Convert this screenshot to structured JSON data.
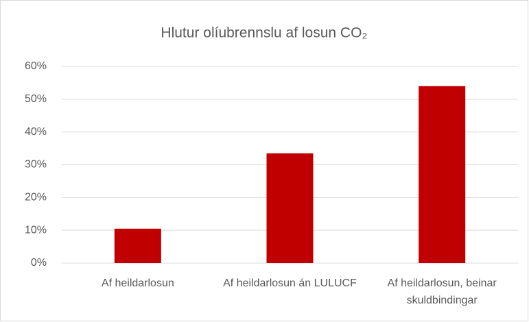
{
  "chart_data": {
    "type": "bar",
    "title": "Hlutur olíubrennslu af losun CO₂",
    "categories": [
      "Af heildarlosun",
      "Af heildarlosun án LULUCF",
      "Af heildarlosun, beinar skuldbindingar"
    ],
    "values": [
      10.5,
      33.5,
      54
    ],
    "color": "#c00000",
    "ylim": [
      0,
      60
    ],
    "yticks": [
      {
        "value": 0,
        "label": "0%"
      },
      {
        "value": 10,
        "label": "10%"
      },
      {
        "value": 20,
        "label": "20%"
      },
      {
        "value": 30,
        "label": "30%"
      },
      {
        "value": 40,
        "label": "40%"
      },
      {
        "value": 50,
        "label": "50%"
      },
      {
        "value": 60,
        "label": "60%"
      }
    ],
    "grid": true
  }
}
